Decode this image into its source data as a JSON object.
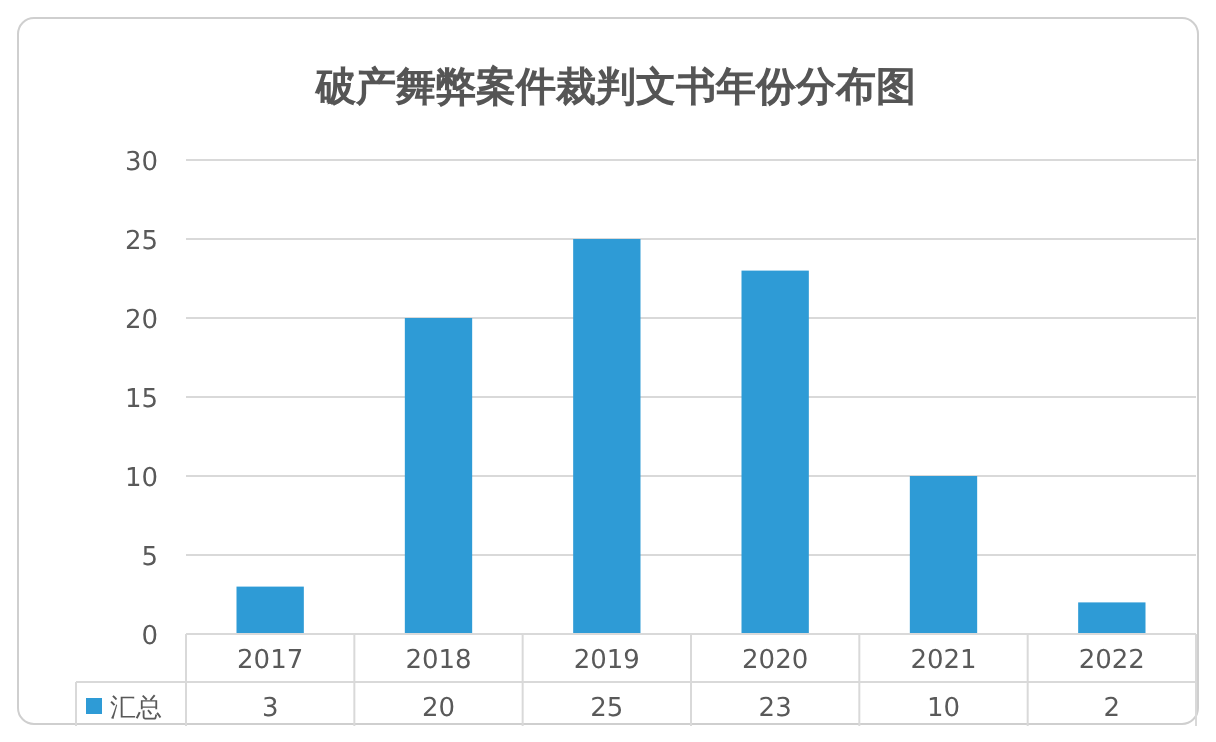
{
  "chart_data": {
    "type": "bar",
    "title": "破产舞弊案件裁判文书年份分布图",
    "categories": [
      "2017",
      "2018",
      "2019",
      "2020",
      "2021",
      "2022"
    ],
    "series": [
      {
        "name": "汇总",
        "color": "#2e9bd6",
        "values": [
          3,
          20,
          25,
          23,
          10,
          2
        ]
      }
    ],
    "ylim": [
      0,
      30
    ],
    "yticks": [
      0,
      5,
      10,
      15,
      20,
      25,
      30
    ],
    "grid": "y",
    "legend": "bottom",
    "data_labels": true
  }
}
